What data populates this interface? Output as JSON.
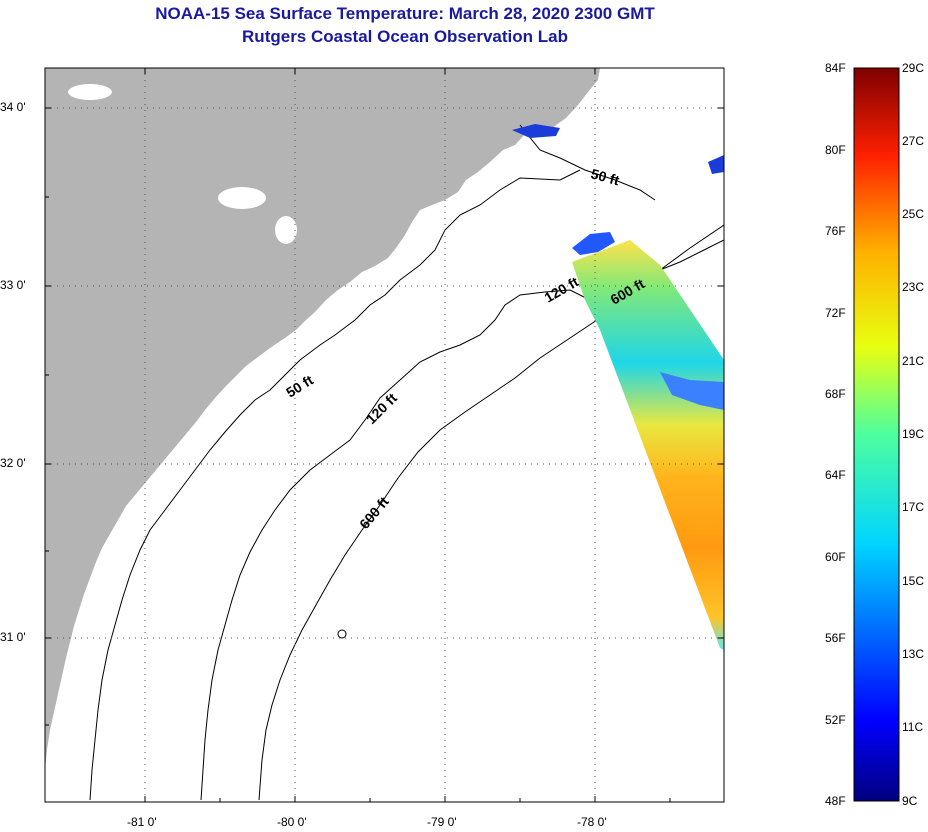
{
  "title": {
    "line1": "NOAA-15 Sea Surface Temperature:  March 28, 2020 2300 GMT",
    "line2": "Rutgers Coastal Ocean Observation Lab"
  },
  "map": {
    "lat_labels": [
      "34 0'",
      "33 0'",
      "32 0'",
      "31 0'"
    ],
    "lon_labels": [
      "-81 0'",
      "-80 0'",
      "-79 0'",
      "-78 0'"
    ],
    "contour_labels": [
      "50 ft",
      "50 ft",
      "120 ft",
      "120 ft",
      "600 ft",
      "600 ft"
    ],
    "colors": {
      "land": "#b4b4b4",
      "ocean": "#ffffff",
      "title": "#1a1aa0",
      "grid": "#555555"
    }
  },
  "colorbar": {
    "fahrenheit_labels": [
      "84F",
      "80F",
      "76F",
      "72F",
      "68F",
      "64F",
      "60F",
      "56F",
      "52F",
      "48F"
    ],
    "celsius_labels": [
      "29C",
      "27C",
      "25C",
      "23C",
      "21C",
      "19C",
      "17C",
      "15C",
      "13C",
      "11C",
      "9C"
    ],
    "range_f": [
      48,
      84
    ],
    "range_c": [
      9,
      29
    ]
  }
}
